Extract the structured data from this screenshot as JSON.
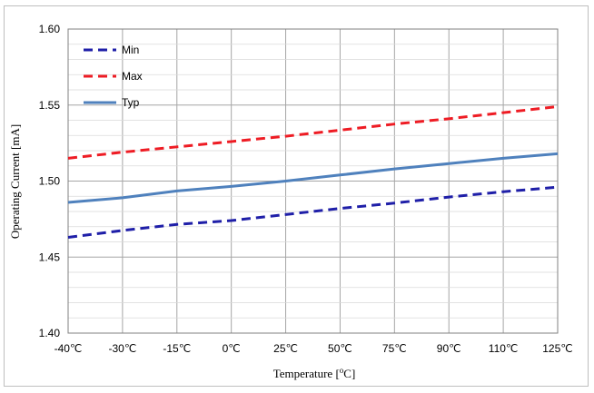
{
  "chart_data": {
    "type": "line",
    "xlabel_parts": [
      "Temperature [",
      "o",
      "C]"
    ],
    "ylabel": "Operating Current  [mA]",
    "categories": [
      "-40℃",
      "-30℃",
      "-15℃",
      "0℃",
      "25℃",
      "50℃",
      "75℃",
      "90℃",
      "110℃",
      "125℃"
    ],
    "y_ticks": [
      "1.40",
      "1.45",
      "1.50",
      "1.55",
      "1.60"
    ],
    "ylim": [
      1.4,
      1.6
    ],
    "grid": true,
    "legend_position": "top-left",
    "series": [
      {
        "name": "Min",
        "color": "#1f1fa8",
        "dash": "dashed",
        "values": [
          1.463,
          1.4675,
          1.4715,
          1.474,
          1.478,
          1.482,
          1.4855,
          1.4895,
          1.493,
          1.496
        ]
      },
      {
        "name": "Max",
        "color": "#ee1c24",
        "dash": "dashed",
        "values": [
          1.515,
          1.519,
          1.5225,
          1.526,
          1.5295,
          1.5335,
          1.5375,
          1.541,
          1.545,
          1.549
        ]
      },
      {
        "name": "Typ",
        "color": "#4f81bd",
        "dash": "solid",
        "values": [
          1.486,
          1.489,
          1.4935,
          1.4965,
          1.5,
          1.504,
          1.508,
          1.5115,
          1.515,
          1.518
        ]
      }
    ]
  }
}
